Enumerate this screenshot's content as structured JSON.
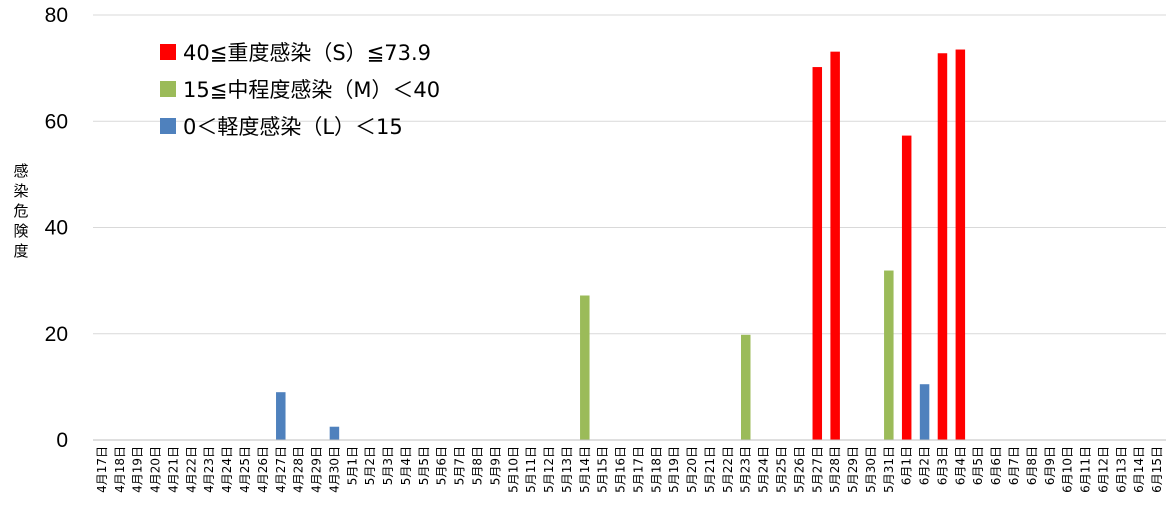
{
  "chart_data": {
    "type": "bar",
    "ylabel": "感染危険度",
    "ylim": [
      0,
      80
    ],
    "yticks": [
      0,
      20,
      40,
      60,
      80
    ],
    "grid": true,
    "legend_position": "top-left",
    "categories": [
      "4月17日",
      "4月18日",
      "4月19日",
      "4月20日",
      "4月21日",
      "4月22日",
      "4月23日",
      "4月24日",
      "4月25日",
      "4月26日",
      "4月27日",
      "4月28日",
      "4月29日",
      "4月30日",
      "5月1日",
      "5月2日",
      "5月3日",
      "5月4日",
      "5月5日",
      "5月6日",
      "5月7日",
      "5月8日",
      "5月9日",
      "5月10日",
      "5月11日",
      "5月12日",
      "5月13日",
      "5月14日",
      "5月15日",
      "5月16日",
      "5月17日",
      "5月18日",
      "5月19日",
      "5月20日",
      "5月21日",
      "5月22日",
      "5月23日",
      "5月24日",
      "5月25日",
      "5月26日",
      "5月27日",
      "5月28日",
      "5月29日",
      "5月30日",
      "5月31日",
      "6月1日",
      "6月2日",
      "6月3日",
      "6月4日",
      "6月5日",
      "6月6日",
      "6月7日",
      "6月8日",
      "6月9日",
      "6月10日",
      "6月11日",
      "6月12日",
      "6月13日",
      "6月14日",
      "6月15日"
    ],
    "series": [
      {
        "name": "40≦重度感染（S）≦73.9",
        "color": "#ff0000",
        "values": {
          "5月27日": 70.2,
          "5月28日": 73.1,
          "6月1日": 57.3,
          "6月3日": 72.8,
          "6月4日": 73.5
        }
      },
      {
        "name": "15≦中程度感染（M）＜40",
        "color": "#9bbb59",
        "values": {
          "5月14日": 27.2,
          "5月23日": 19.8,
          "5月31日": 31.9
        }
      },
      {
        "name": "0＜軽度感染（L）＜15",
        "color": "#4f81bd",
        "values": {
          "4月27日": 9.0,
          "4月30日": 2.5,
          "6月2日": 10.5
        }
      }
    ]
  }
}
